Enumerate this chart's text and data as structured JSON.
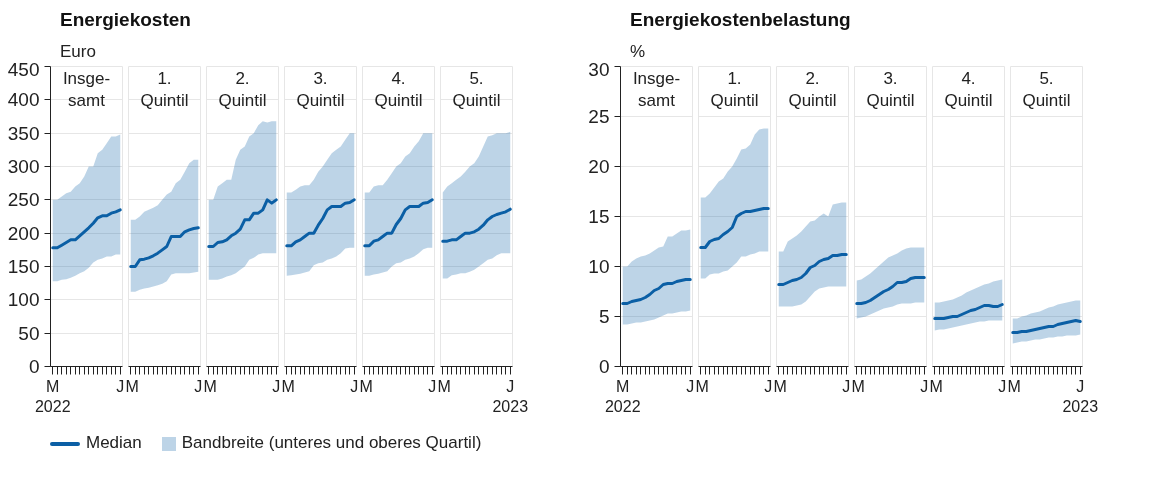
{
  "chart_data": [
    {
      "type": "line",
      "title": "Energiekosten",
      "subtitle": "Insge-\nsamt",
      "ylabel": "Euro",
      "legend": "bottom",
      "grid": "y",
      "annotations": [
        "2022",
        "Bandbreite (unteres und oberes Quartil)"
      ],
      "categories": [
        "M",
        null,
        null,
        null,
        null,
        null,
        null,
        null,
        null,
        null,
        null,
        null,
        null,
        null,
        null,
        "J"
      ],
      "ylim": [
        0,
        450
      ],
      "yticks": [
        0,
        50,
        100,
        150,
        200,
        250,
        300,
        350,
        400,
        450
      ],
      "series": [
        {
          "name": "Median",
          "color": "#0b5fa5",
          "values": [
            178,
            178,
            182,
            186,
            190,
            190,
            196,
            202,
            208,
            215,
            223,
            226,
            226,
            230,
            232,
            235
          ],
          "lower": [
            128,
            128,
            130,
            131,
            133,
            136,
            140,
            143,
            148,
            156,
            160,
            162,
            165,
            165,
            168,
            168
          ],
          "upper": [
            250,
            250,
            255,
            260,
            262,
            270,
            275,
            285,
            300,
            300,
            320,
            325,
            335,
            345,
            345,
            348
          ]
        }
      ]
    },
    {
      "type": "line",
      "subtitle": "1.\nQuintil",
      "tick_labels": "x",
      "grid": "y",
      "categories": [
        "M",
        null,
        null,
        null,
        null,
        null,
        null,
        null,
        null,
        null,
        null,
        null,
        null,
        null,
        null,
        "J"
      ],
      "ylim": [
        0,
        450
      ],
      "yticks": [
        0,
        50,
        100,
        150,
        200,
        250,
        300,
        350,
        400,
        450
      ],
      "series": [
        {
          "color": "#0b5fa5",
          "values": [
            150,
            150,
            160,
            161,
            163,
            166,
            170,
            175,
            180,
            195,
            195,
            195,
            202,
            205,
            207,
            208
          ],
          "lower": [
            112,
            112,
            115,
            117,
            118,
            120,
            122,
            124,
            128,
            138,
            140,
            140,
            140,
            140,
            141,
            142
          ],
          "upper": [
            220,
            220,
            225,
            232,
            235,
            238,
            242,
            250,
            258,
            262,
            275,
            280,
            292,
            305,
            310,
            310
          ]
        }
      ]
    },
    {
      "type": "line",
      "subtitle": "2.\nQuintil",
      "tick_labels": "x",
      "grid": "y",
      "categories": [
        "M",
        null,
        null,
        null,
        null,
        null,
        null,
        null,
        null,
        null,
        null,
        null,
        null,
        null,
        null,
        "J"
      ],
      "ylim": [
        0,
        450
      ],
      "yticks": [
        0,
        50,
        100,
        150,
        200,
        250,
        300,
        350,
        400,
        450
      ],
      "series": [
        {
          "color": "#0b5fa5",
          "values": [
            180,
            180,
            186,
            187,
            190,
            196,
            200,
            206,
            220,
            220,
            230,
            230,
            235,
            250,
            245,
            250
          ],
          "lower": [
            130,
            130,
            130,
            132,
            135,
            137,
            140,
            145,
            150,
            160,
            163,
            168,
            170,
            170,
            170,
            170
          ],
          "upper": [
            250,
            250,
            270,
            275,
            280,
            280,
            310,
            325,
            330,
            345,
            350,
            362,
            368,
            366,
            368,
            368
          ]
        }
      ]
    },
    {
      "type": "line",
      "subtitle": "3.\nQuintil",
      "tick_labels": "x",
      "grid": "y",
      "categories": [
        "M",
        null,
        null,
        null,
        null,
        null,
        null,
        null,
        null,
        null,
        null,
        null,
        null,
        null,
        null,
        "J"
      ],
      "ylim": [
        0,
        450
      ],
      "yticks": [
        0,
        50,
        100,
        150,
        200,
        250,
        300,
        350,
        400,
        450
      ],
      "series": [
        {
          "color": "#0b5fa5",
          "values": [
            181,
            181,
            187,
            190,
            195,
            200,
            200,
            212,
            222,
            235,
            240,
            240,
            240,
            245,
            246,
            250
          ],
          "lower": [
            136,
            137,
            138,
            139,
            141,
            143,
            152,
            155,
            156,
            160,
            162,
            165,
            170,
            177,
            178,
            178
          ],
          "upper": [
            261,
            261,
            265,
            270,
            272,
            272,
            280,
            292,
            300,
            310,
            320,
            325,
            330,
            340,
            350,
            350
          ]
        }
      ]
    },
    {
      "type": "line",
      "subtitle": "4.\nQuintil",
      "tick_labels": "x",
      "grid": "y",
      "categories": [
        "M",
        null,
        null,
        null,
        null,
        null,
        null,
        null,
        null,
        null,
        null,
        null,
        null,
        null,
        null,
        "J"
      ],
      "ylim": [
        0,
        450
      ],
      "yticks": [
        0,
        50,
        100,
        150,
        200,
        250,
        300,
        350,
        400,
        450
      ],
      "series": [
        {
          "color": "#0b5fa5",
          "values": [
            181,
            181,
            188,
            190,
            195,
            200,
            200,
            213,
            222,
            235,
            240,
            240,
            240,
            245,
            246,
            250
          ],
          "lower": [
            136,
            136,
            138,
            139,
            141,
            143,
            150,
            155,
            156,
            160,
            162,
            165,
            170,
            176,
            178,
            178
          ],
          "upper": [
            261,
            261,
            270,
            272,
            272,
            280,
            290,
            300,
            305,
            315,
            320,
            330,
            338,
            350,
            350,
            350
          ]
        }
      ]
    },
    {
      "type": "line",
      "subtitle": "5.\nQuintil",
      "tick_labels": "x",
      "grid": "y",
      "annotations": [
        "2023"
      ],
      "categories": [
        "M",
        null,
        null,
        null,
        null,
        null,
        null,
        null,
        null,
        null,
        null,
        null,
        null,
        null,
        null,
        "J"
      ],
      "ylim": [
        0,
        450
      ],
      "yticks": [
        0,
        50,
        100,
        150,
        200,
        250,
        300,
        350,
        400,
        450
      ],
      "series": [
        {
          "color": "#0b5fa5",
          "values": [
            188,
            188,
            190,
            190,
            195,
            200,
            200,
            202,
            206,
            212,
            220,
            225,
            228,
            230,
            232,
            236
          ],
          "lower": [
            132,
            132,
            137,
            138,
            140,
            140,
            142,
            145,
            150,
            155,
            160,
            162,
            167,
            170,
            170,
            170
          ],
          "upper": [
            261,
            270,
            275,
            280,
            285,
            292,
            300,
            305,
            315,
            330,
            345,
            347,
            350,
            350,
            350,
            352
          ]
        }
      ]
    },
    {
      "type": "line",
      "title": "Energiekostenbelastung",
      "subtitle": "Insge-\nsamt",
      "ylabel": "%",
      "grid": "y",
      "annotations": [
        "2022"
      ],
      "categories": [
        "M",
        null,
        null,
        null,
        null,
        null,
        null,
        null,
        null,
        null,
        null,
        null,
        null,
        null,
        null,
        "J"
      ],
      "ylim": [
        0,
        30
      ],
      "yticks": [
        0,
        5,
        10,
        15,
        20,
        25,
        30
      ],
      "series": [
        {
          "color": "#0b5fa5",
          "values": [
            6.3,
            6.3,
            6.5,
            6.6,
            6.7,
            6.9,
            7.2,
            7.6,
            7.8,
            8.2,
            8.3,
            8.3,
            8.5,
            8.6,
            8.7,
            8.7
          ],
          "lower": [
            4.2,
            4.2,
            4.3,
            4.4,
            4.4,
            4.5,
            4.6,
            4.7,
            4.9,
            5.1,
            5.3,
            5.3,
            5.4,
            5.5,
            5.5,
            5.6
          ],
          "upper": [
            10.0,
            10.0,
            10.5,
            10.8,
            11.0,
            11.1,
            11.3,
            11.6,
            11.9,
            12.0,
            13.0,
            13.0,
            13.3,
            13.6,
            13.6,
            13.7
          ]
        }
      ]
    },
    {
      "type": "line",
      "subtitle": "1.\nQuintil",
      "tick_labels": "x",
      "grid": "y",
      "categories": [
        "M",
        null,
        null,
        null,
        null,
        null,
        null,
        null,
        null,
        null,
        null,
        null,
        null,
        null,
        null,
        "J"
      ],
      "ylim": [
        0,
        30
      ],
      "yticks": [
        0,
        5,
        10,
        15,
        20,
        25,
        30
      ],
      "series": [
        {
          "color": "#0b5fa5",
          "values": [
            11.9,
            11.9,
            12.5,
            12.7,
            12.8,
            13.2,
            13.5,
            13.9,
            15.0,
            15.3,
            15.5,
            15.5,
            15.6,
            15.7,
            15.8,
            15.8
          ],
          "lower": [
            8.8,
            8.8,
            9.2,
            9.3,
            9.3,
            9.5,
            9.6,
            10.0,
            10.4,
            11.0,
            11.0,
            11.2,
            11.3,
            11.5,
            11.5,
            11.5
          ],
          "upper": [
            16.9,
            16.9,
            17.3,
            17.9,
            18.5,
            18.8,
            19.5,
            20.0,
            20.8,
            21.7,
            21.8,
            22.2,
            23.2,
            23.7,
            23.8,
            23.8
          ]
        }
      ]
    },
    {
      "type": "line",
      "subtitle": "2.\nQuintil",
      "tick_labels": "x",
      "grid": "y",
      "categories": [
        "M",
        null,
        null,
        null,
        null,
        null,
        null,
        null,
        null,
        null,
        null,
        null,
        null,
        null,
        null,
        "J"
      ],
      "ylim": [
        0,
        30
      ],
      "yticks": [
        0,
        5,
        10,
        15,
        20,
        25,
        30
      ],
      "series": [
        {
          "color": "#0b5fa5",
          "values": [
            8.2,
            8.2,
            8.4,
            8.6,
            8.7,
            8.9,
            9.3,
            9.9,
            10.1,
            10.5,
            10.7,
            10.8,
            11.1,
            11.1,
            11.2,
            11.2
          ],
          "lower": [
            6.0,
            6.0,
            6.0,
            6.0,
            6.1,
            6.2,
            6.5,
            7.0,
            7.5,
            7.8,
            7.9,
            8.0,
            8.0,
            8.0,
            8.0,
            8.0
          ],
          "upper": [
            11.5,
            11.5,
            12.5,
            12.8,
            13.1,
            13.5,
            14.0,
            14.5,
            14.6,
            15.0,
            15.3,
            15.0,
            16.2,
            16.3,
            16.4,
            16.4
          ]
        }
      ]
    },
    {
      "type": "line",
      "subtitle": "3.\nQuintil",
      "tick_labels": "x",
      "grid": "y",
      "categories": [
        "M",
        null,
        null,
        null,
        null,
        null,
        null,
        null,
        null,
        null,
        null,
        null,
        null,
        null,
        null,
        "J"
      ],
      "ylim": [
        0,
        30
      ],
      "yticks": [
        0,
        5,
        10,
        15,
        20,
        25,
        30
      ],
      "series": [
        {
          "color": "#0b5fa5",
          "values": [
            6.3,
            6.3,
            6.4,
            6.6,
            6.9,
            7.2,
            7.5,
            7.7,
            8.0,
            8.4,
            8.4,
            8.5,
            8.8,
            8.9,
            8.9,
            8.9
          ],
          "lower": [
            4.8,
            4.9,
            5.0,
            5.2,
            5.4,
            5.6,
            5.8,
            5.9,
            6.0,
            6.2,
            6.3,
            6.3,
            6.3,
            6.4,
            6.4,
            6.4
          ],
          "upper": [
            8.6,
            8.7,
            9.0,
            9.3,
            9.7,
            10.1,
            10.5,
            10.9,
            11.1,
            11.3,
            11.6,
            11.8,
            11.9,
            11.9,
            11.9,
            11.9
          ]
        }
      ]
    },
    {
      "type": "line",
      "subtitle": "4.\nQuintil",
      "tick_labels": "x",
      "grid": "y",
      "categories": [
        "M",
        null,
        null,
        null,
        null,
        null,
        null,
        null,
        null,
        null,
        null,
        null,
        null,
        null,
        null,
        "J"
      ],
      "ylim": [
        0,
        30
      ],
      "yticks": [
        0,
        5,
        10,
        15,
        20,
        25,
        30
      ],
      "series": [
        {
          "color": "#0b5fa5",
          "values": [
            4.8,
            4.8,
            4.8,
            4.9,
            5.0,
            5.0,
            5.2,
            5.4,
            5.6,
            5.7,
            5.9,
            6.1,
            6.1,
            6.0,
            6.0,
            6.2
          ],
          "lower": [
            3.6,
            3.7,
            3.7,
            3.8,
            3.9,
            4.0,
            4.1,
            4.2,
            4.3,
            4.4,
            4.5,
            4.5,
            4.6,
            4.6,
            4.6,
            4.6
          ],
          "upper": [
            6.4,
            6.4,
            6.5,
            6.6,
            6.7,
            6.9,
            7.1,
            7.4,
            7.6,
            7.8,
            8.0,
            8.2,
            8.3,
            8.5,
            8.6,
            8.7
          ]
        }
      ]
    },
    {
      "type": "line",
      "subtitle": "5.\nQuintil",
      "tick_labels": "x",
      "grid": "y",
      "annotations": [
        "2023"
      ],
      "categories": [
        "M",
        null,
        null,
        null,
        null,
        null,
        null,
        null,
        null,
        null,
        null,
        null,
        null,
        null,
        null,
        "J"
      ],
      "ylim": [
        0,
        30
      ],
      "yticks": [
        0,
        5,
        10,
        15,
        20,
        25,
        30
      ],
      "series": [
        {
          "color": "#0b5fa5",
          "values": [
            3.4,
            3.4,
            3.5,
            3.5,
            3.6,
            3.7,
            3.8,
            3.9,
            4.0,
            4.0,
            4.2,
            4.3,
            4.4,
            4.5,
            4.6,
            4.5
          ],
          "lower": [
            2.3,
            2.4,
            2.5,
            2.5,
            2.6,
            2.7,
            2.7,
            2.8,
            2.9,
            2.9,
            3.0,
            3.0,
            3.1,
            3.1,
            3.1,
            3.2
          ],
          "upper": [
            4.8,
            4.8,
            5.0,
            5.1,
            5.3,
            5.4,
            5.5,
            5.7,
            5.9,
            6.0,
            6.2,
            6.3,
            6.4,
            6.5,
            6.6,
            6.6
          ]
        }
      ]
    }
  ]
}
